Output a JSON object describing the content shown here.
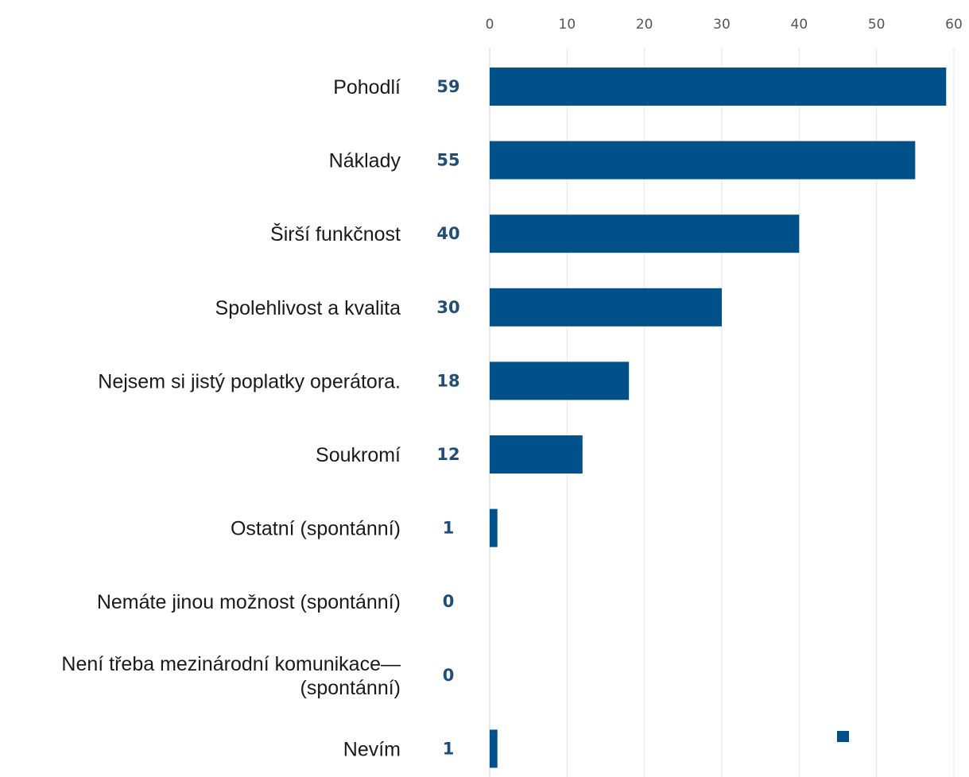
{
  "chart_data": {
    "type": "bar",
    "orientation": "horizontal",
    "title": "",
    "xlabel": "",
    "ylabel": "",
    "xlim": [
      0,
      60
    ],
    "ticks": [
      0,
      10,
      20,
      30,
      40,
      50,
      60
    ],
    "tick_labels": [
      "0",
      "10",
      "20",
      "30",
      "40",
      "50",
      "60"
    ],
    "axis_position": "top",
    "grid": true,
    "categories": [
      [
        "Pohodlí"
      ],
      [
        "Náklady"
      ],
      [
        "Širší funkčnost"
      ],
      [
        "Spolehlivost a kvalita"
      ],
      [
        "Nejsem si jistý poplatky operátora."
      ],
      [
        "Soukromí"
      ],
      [
        "Ostatní (spontánní)"
      ],
      [
        "Nemáte jinou možnost (spontánní)"
      ],
      [
        "Není třeba mezinárodní komunikace—",
        "(spontánní)"
      ],
      [
        "Nevím"
      ]
    ],
    "values": [
      59,
      55,
      40,
      30,
      18,
      12,
      1,
      0,
      0,
      1
    ],
    "value_labels": [
      "59",
      "55",
      "40",
      "30",
      "18",
      "12",
      "1",
      "0",
      "0",
      "1"
    ],
    "bar_color": "#00518a",
    "value_label_color": "#1f4e79",
    "legend": {
      "placement": "bottom-right",
      "entries": [
        ""
      ]
    }
  }
}
